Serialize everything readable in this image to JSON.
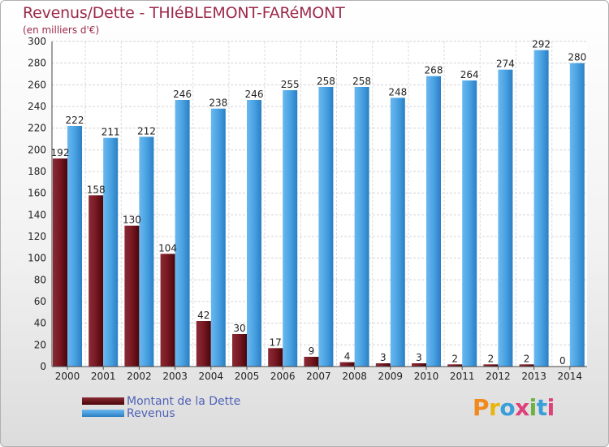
{
  "header": {
    "title": "Revenus/Dette - THIéBLEMONT-FARéMONT",
    "subtitle": "(en milliers d'€)"
  },
  "colors": {
    "dette": "#6b0f17",
    "revenus": "#3b93d6",
    "accent": "#9c2a4a",
    "legend_text": "#4f62b8"
  },
  "chart_data": {
    "type": "bar",
    "title": "Revenus/Dette - THIéBLEMONT-FARéMONT",
    "subtitle": "(en milliers d'€)",
    "categories": [
      "2000",
      "2001",
      "2002",
      "2003",
      "2004",
      "2005",
      "2006",
      "2007",
      "2008",
      "2009",
      "2010",
      "2011",
      "2012",
      "2013",
      "2014"
    ],
    "series": [
      {
        "name": "Montant de la Dette",
        "values": [
          192,
          158,
          130,
          104,
          42,
          30,
          17,
          9,
          4,
          3,
          3,
          2,
          2,
          2,
          0
        ]
      },
      {
        "name": "Revenus",
        "values": [
          222,
          211,
          212,
          246,
          238,
          246,
          255,
          258,
          258,
          248,
          268,
          264,
          274,
          292,
          280
        ]
      }
    ],
    "yticks": [
      "0",
      "20",
      "40",
      "60",
      "80",
      "100",
      "120",
      "140",
      "160",
      "180",
      "200",
      "220",
      "240",
      "260",
      "280",
      "300"
    ],
    "ylim": [
      0,
      300
    ],
    "grid": true,
    "legend_position": "bottom-left"
  },
  "legend": {
    "items": [
      {
        "label": "Montant de la Dette"
      },
      {
        "label": "Revenus"
      }
    ]
  },
  "logo": {
    "text": "Proxiti"
  }
}
